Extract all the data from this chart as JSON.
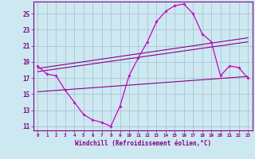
{
  "xlabel": "Windchill (Refroidissement éolien,°C)",
  "bg_color": "#cce8f0",
  "grid_color": "#aabbd0",
  "line_color_main": "#cc00cc",
  "line_color_straight": "#880088",
  "xlim": [
    -0.5,
    23.5
  ],
  "ylim": [
    10.5,
    26.5
  ],
  "yticks": [
    11,
    13,
    15,
    17,
    19,
    21,
    23,
    25
  ],
  "xticks": [
    0,
    1,
    2,
    3,
    4,
    5,
    6,
    7,
    8,
    9,
    10,
    11,
    12,
    13,
    14,
    15,
    16,
    17,
    18,
    19,
    20,
    21,
    22,
    23
  ],
  "windchill_x": [
    0,
    1,
    2,
    3,
    4,
    5,
    6,
    7,
    8,
    9,
    10,
    11,
    12,
    13,
    14,
    15,
    16,
    17,
    18,
    19,
    20,
    21,
    22,
    23
  ],
  "windchill_y": [
    18.5,
    17.5,
    17.3,
    15.5,
    14.0,
    12.5,
    11.8,
    11.5,
    11.0,
    13.5,
    17.3,
    19.5,
    21.5,
    24.0,
    25.3,
    26.0,
    26.2,
    25.0,
    22.5,
    21.5,
    17.3,
    18.5,
    18.3,
    17.0
  ],
  "straight_lines": [
    {
      "x": [
        0,
        23
      ],
      "y": [
        18.2,
        22.0
      ]
    },
    {
      "x": [
        0,
        23
      ],
      "y": [
        17.8,
        21.5
      ]
    },
    {
      "x": [
        0,
        23
      ],
      "y": [
        15.3,
        17.2
      ]
    }
  ]
}
